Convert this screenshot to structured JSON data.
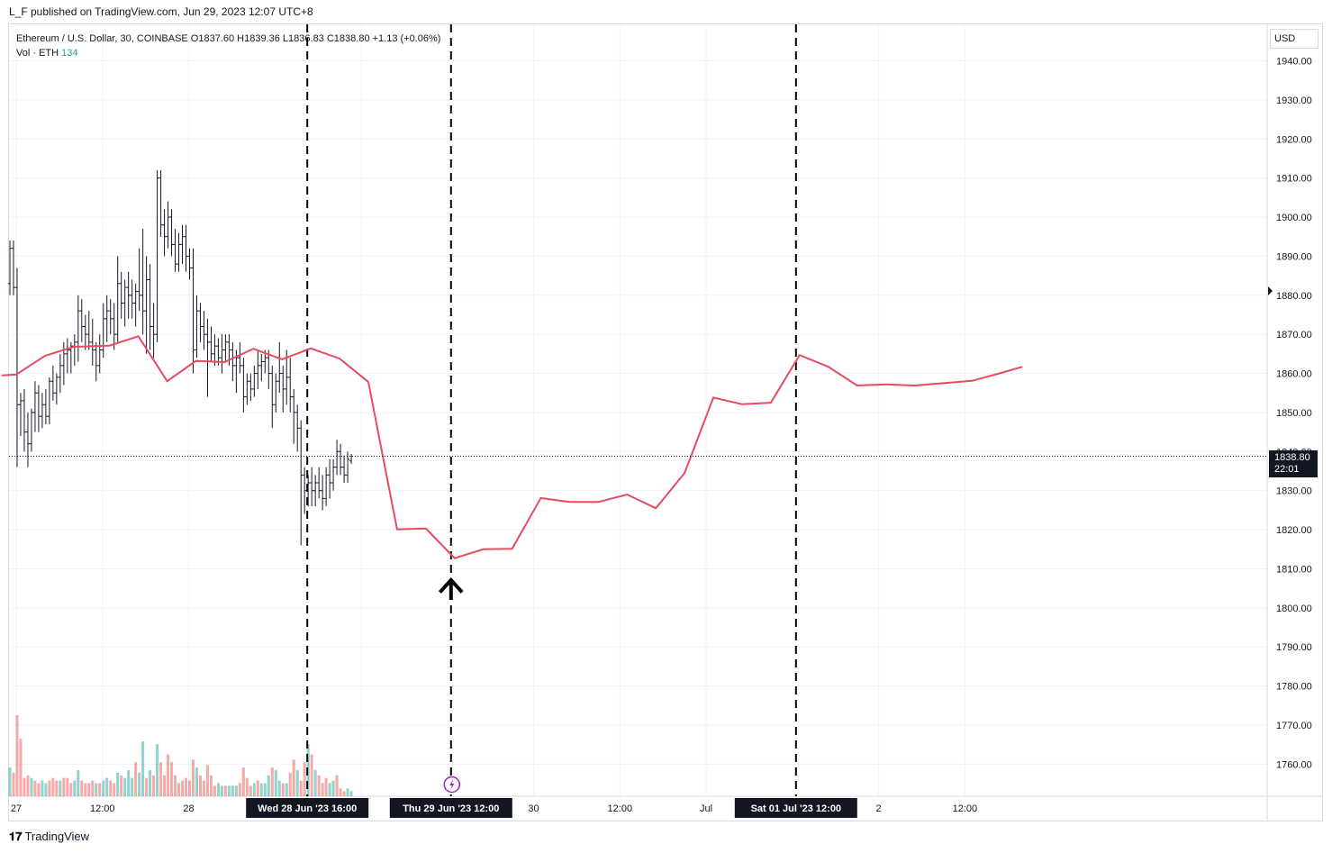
{
  "header": {
    "published": "L_F published on TradingView.com, Jun 29, 2023 12:07 UTC+8"
  },
  "legend": {
    "symbol_line": "Ethereum / U.S. Dollar, 30, COINBASE  O1837.60  H1839.36  L1836.83  C1838.80  +1.13 (+0.06%)",
    "vol_label": "Vol · ETH",
    "vol_value": "134"
  },
  "price_axis": {
    "currency": "USD",
    "last_price": "1838.80",
    "countdown": "22:01"
  },
  "footer": {
    "brand": "TradingView",
    "logo_icon": "tradingview-logo-icon"
  },
  "colors": {
    "up_candle": "#131722",
    "prediction_line": "#e84a5f",
    "volume_up": "#26a69a",
    "volume_down": "#ef5350",
    "vline": "#000000",
    "highlight_label": "#131722"
  },
  "chart_data": {
    "type": "line",
    "symbol": "ETH/USD",
    "interval": "30",
    "exchange": "COINBASE",
    "ylim": [
      1752,
      1945
    ],
    "y_ticks": [
      1760,
      1770,
      1780,
      1790,
      1800,
      1810,
      1820,
      1830,
      1840,
      1850,
      1860,
      1870,
      1880,
      1890,
      1900,
      1910,
      1920,
      1930,
      1940
    ],
    "x_ticks": [
      {
        "label": "27",
        "t": 0
      },
      {
        "label": "12:00",
        "t": 24
      },
      {
        "label": "28",
        "t": 48
      },
      {
        "label": "29",
        "t": 96
      },
      {
        "label": "30",
        "t": 144
      },
      {
        "label": "12:00",
        "t": 168
      },
      {
        "label": "Jul",
        "t": 192
      },
      {
        "label": "2",
        "t": 240
      },
      {
        "label": "12:00",
        "t": 264
      }
    ],
    "highlight_labels": [
      {
        "label": "Wed 28 Jun '23   16:00",
        "t": 81
      },
      {
        "label": "Thu 29 Jun '23   12:00",
        "t": 121
      },
      {
        "label": "Sat 01 Jul '23   12:00",
        "t": 217
      }
    ],
    "vertical_lines_t": [
      81,
      121,
      217
    ],
    "last_price": 1838.8,
    "candles": [
      [
        1883,
        1894,
        1880,
        1892
      ],
      [
        1892,
        1894,
        1880,
        1882
      ],
      [
        1882,
        1887,
        1836,
        1852
      ],
      [
        1852,
        1855,
        1844,
        1853
      ],
      [
        1853,
        1856,
        1840,
        1845
      ],
      [
        1845,
        1850,
        1836,
        1842
      ],
      [
        1842,
        1851,
        1840,
        1850
      ],
      [
        1850,
        1858,
        1845,
        1855
      ],
      [
        1855,
        1857,
        1845,
        1849
      ],
      [
        1849,
        1855,
        1846,
        1852
      ],
      [
        1852,
        1856,
        1847,
        1849
      ],
      [
        1849,
        1859,
        1847,
        1858
      ],
      [
        1858,
        1862,
        1853,
        1855
      ],
      [
        1855,
        1860,
        1852,
        1859
      ],
      [
        1859,
        1865,
        1855,
        1862
      ],
      [
        1862,
        1868,
        1857,
        1865
      ],
      [
        1865,
        1869,
        1860,
        1866
      ],
      [
        1866,
        1868,
        1860,
        1867
      ],
      [
        1867,
        1870,
        1862,
        1868
      ],
      [
        1868,
        1880,
        1863,
        1876
      ],
      [
        1876,
        1879,
        1868,
        1872
      ],
      [
        1872,
        1875,
        1866,
        1870
      ],
      [
        1870,
        1876,
        1866,
        1868
      ],
      [
        1868,
        1874,
        1862,
        1866
      ],
      [
        1866,
        1868,
        1858,
        1862
      ],
      [
        1862,
        1870,
        1860,
        1866
      ],
      [
        1866,
        1878,
        1864,
        1874
      ],
      [
        1874,
        1880,
        1868,
        1876
      ],
      [
        1876,
        1879,
        1870,
        1874
      ],
      [
        1874,
        1878,
        1866,
        1870
      ],
      [
        1870,
        1890,
        1868,
        1883
      ],
      [
        1883,
        1886,
        1874,
        1878
      ],
      [
        1878,
        1884,
        1872,
        1882
      ],
      [
        1882,
        1886,
        1874,
        1880
      ],
      [
        1880,
        1884,
        1874,
        1878
      ],
      [
        1878,
        1883,
        1872,
        1881
      ],
      [
        1881,
        1892,
        1876,
        1880
      ],
      [
        1880,
        1897,
        1870,
        1876
      ],
      [
        1876,
        1890,
        1865,
        1884
      ],
      [
        1884,
        1888,
        1866,
        1872
      ],
      [
        1872,
        1878,
        1864,
        1870
      ],
      [
        1870,
        1912,
        1868,
        1910
      ],
      [
        1910,
        1912,
        1895,
        1898
      ],
      [
        1898,
        1902,
        1890,
        1895
      ],
      [
        1895,
        1904,
        1892,
        1900
      ],
      [
        1900,
        1902,
        1890,
        1893
      ],
      [
        1893,
        1897,
        1886,
        1888
      ],
      [
        1888,
        1896,
        1886,
        1893
      ],
      [
        1893,
        1898,
        1888,
        1895
      ],
      [
        1895,
        1898,
        1886,
        1890
      ],
      [
        1890,
        1892,
        1884,
        1887
      ],
      [
        1887,
        1892,
        1860,
        1866
      ],
      [
        1866,
        1880,
        1864,
        1876
      ],
      [
        1876,
        1878,
        1868,
        1872
      ],
      [
        1872,
        1876,
        1866,
        1870
      ],
      [
        1870,
        1874,
        1854,
        1868
      ],
      [
        1868,
        1872,
        1863,
        1865
      ],
      [
        1865,
        1870,
        1862,
        1867
      ],
      [
        1867,
        1869,
        1862,
        1864
      ],
      [
        1864,
        1870,
        1860,
        1866
      ],
      [
        1866,
        1870,
        1863,
        1868
      ],
      [
        1868,
        1870,
        1862,
        1866
      ],
      [
        1866,
        1868,
        1858,
        1862
      ],
      [
        1862,
        1866,
        1855,
        1864
      ],
      [
        1864,
        1868,
        1860,
        1862
      ],
      [
        1862,
        1864,
        1850,
        1854
      ],
      [
        1854,
        1860,
        1852,
        1858
      ],
      [
        1858,
        1860,
        1853,
        1856
      ],
      [
        1856,
        1862,
        1854,
        1860
      ],
      [
        1860,
        1866,
        1856,
        1862
      ],
      [
        1862,
        1865,
        1858,
        1863
      ],
      [
        1863,
        1866,
        1860,
        1864
      ],
      [
        1864,
        1866,
        1856,
        1860
      ],
      [
        1860,
        1862,
        1846,
        1852
      ],
      [
        1852,
        1860,
        1850,
        1858
      ],
      [
        1858,
        1868,
        1855,
        1860
      ],
      [
        1860,
        1862,
        1850,
        1856
      ],
      [
        1856,
        1866,
        1852,
        1859
      ],
      [
        1859,
        1864,
        1850,
        1854
      ],
      [
        1854,
        1856,
        1842,
        1850
      ],
      [
        1850,
        1852,
        1840,
        1846
      ],
      [
        1846,
        1848,
        1816,
        1834
      ],
      [
        1834,
        1836,
        1824,
        1830
      ],
      [
        1830,
        1834,
        1826,
        1832
      ],
      [
        1832,
        1836,
        1826,
        1830
      ],
      [
        1830,
        1834,
        1826,
        1832
      ],
      [
        1832,
        1836,
        1828,
        1830
      ],
      [
        1830,
        1834,
        1825,
        1828
      ],
      [
        1828,
        1836,
        1826,
        1834
      ],
      [
        1834,
        1838,
        1828,
        1832
      ],
      [
        1832,
        1838,
        1830,
        1836
      ],
      [
        1836,
        1843,
        1834,
        1840
      ],
      [
        1840,
        1842,
        1834,
        1836
      ],
      [
        1836,
        1839,
        1832,
        1834
      ],
      [
        1834,
        1840,
        1832,
        1838
      ],
      [
        1837.6,
        1839.36,
        1836.83,
        1838.8
      ]
    ],
    "volumes": [
      [
        11,
        0
      ],
      [
        9,
        1
      ],
      [
        31,
        1
      ],
      [
        22,
        1
      ],
      [
        7,
        1
      ],
      [
        8,
        1
      ],
      [
        7,
        0
      ],
      [
        6,
        1
      ],
      [
        5,
        1
      ],
      [
        6,
        0
      ],
      [
        5,
        0
      ],
      [
        6,
        1
      ],
      [
        7,
        1
      ],
      [
        6,
        1
      ],
      [
        6,
        0
      ],
      [
        7,
        1
      ],
      [
        7,
        1
      ],
      [
        5,
        1
      ],
      [
        6,
        0
      ],
      [
        10,
        0
      ],
      [
        6,
        1
      ],
      [
        5,
        1
      ],
      [
        5,
        1
      ],
      [
        6,
        1
      ],
      [
        5,
        0
      ],
      [
        5,
        1
      ],
      [
        6,
        0
      ],
      [
        7,
        0
      ],
      [
        6,
        1
      ],
      [
        5,
        1
      ],
      [
        9,
        0
      ],
      [
        8,
        1
      ],
      [
        7,
        0
      ],
      [
        10,
        0
      ],
      [
        7,
        0
      ],
      [
        13,
        1
      ],
      [
        9,
        0
      ],
      [
        21,
        0
      ],
      [
        7,
        1
      ],
      [
        10,
        0
      ],
      [
        8,
        1
      ],
      [
        20,
        0
      ],
      [
        13,
        1
      ],
      [
        8,
        1
      ],
      [
        16,
        1
      ],
      [
        13,
        1
      ],
      [
        8,
        1
      ],
      [
        5,
        1
      ],
      [
        6,
        1
      ],
      [
        7,
        1
      ],
      [
        6,
        1
      ],
      [
        14,
        1
      ],
      [
        11,
        0
      ],
      [
        8,
        1
      ],
      [
        6,
        1
      ],
      [
        12,
        1
      ],
      [
        8,
        1
      ],
      [
        4,
        1
      ],
      [
        5,
        0
      ],
      [
        4,
        0
      ],
      [
        4,
        1
      ],
      [
        4,
        0
      ],
      [
        4,
        0
      ],
      [
        4,
        0
      ],
      [
        5,
        1
      ],
      [
        11,
        1
      ],
      [
        7,
        1
      ],
      [
        4,
        1
      ],
      [
        5,
        0
      ],
      [
        6,
        1
      ],
      [
        5,
        0
      ],
      [
        5,
        0
      ],
      [
        8,
        0
      ],
      [
        11,
        1
      ],
      [
        10,
        0
      ],
      [
        6,
        0
      ],
      [
        5,
        1
      ],
      [
        5,
        0
      ],
      [
        9,
        1
      ],
      [
        14,
        1
      ],
      [
        10,
        0
      ],
      [
        6,
        1
      ],
      [
        13,
        1
      ],
      [
        20,
        0
      ],
      [
        16,
        1
      ],
      [
        10,
        0
      ],
      [
        8,
        1
      ],
      [
        5,
        1
      ],
      [
        7,
        1
      ],
      [
        5,
        0
      ],
      [
        6,
        0
      ],
      [
        8,
        1
      ],
      [
        3,
        1
      ],
      [
        2,
        1
      ],
      [
        3,
        0
      ],
      [
        2,
        0
      ]
    ],
    "prediction_line": [
      {
        "t": -4,
        "y": 1859.5
      },
      {
        "t": 0,
        "y": 1859.7
      },
      {
        "t": 8,
        "y": 1864.5
      },
      {
        "t": 16,
        "y": 1866.8
      },
      {
        "t": 26,
        "y": 1867.1
      },
      {
        "t": 34,
        "y": 1869.5
      },
      {
        "t": 42,
        "y": 1858
      },
      {
        "t": 50,
        "y": 1863.2
      },
      {
        "t": 58,
        "y": 1862.9
      },
      {
        "t": 66,
        "y": 1866.3
      },
      {
        "t": 74,
        "y": 1863.6
      },
      {
        "t": 82,
        "y": 1866.4
      },
      {
        "t": 90,
        "y": 1863.8
      },
      {
        "t": 98,
        "y": 1857.8
      },
      {
        "t": 106,
        "y": 1820.1
      },
      {
        "t": 114,
        "y": 1820.3
      },
      {
        "t": 122,
        "y": 1812.7
      },
      {
        "t": 130,
        "y": 1815
      },
      {
        "t": 138,
        "y": 1815.1
      },
      {
        "t": 146,
        "y": 1828.1
      },
      {
        "t": 154,
        "y": 1827.1
      },
      {
        "t": 162,
        "y": 1827.1
      },
      {
        "t": 170,
        "y": 1829
      },
      {
        "t": 178,
        "y": 1825.5
      },
      {
        "t": 186,
        "y": 1834.5
      },
      {
        "t": 194,
        "y": 1853.8
      },
      {
        "t": 202,
        "y": 1852.1
      },
      {
        "t": 210,
        "y": 1852.5
      },
      {
        "t": 218,
        "y": 1864.7
      },
      {
        "t": 226,
        "y": 1861.7
      },
      {
        "t": 234,
        "y": 1856.9
      },
      {
        "t": 242,
        "y": 1857.2
      },
      {
        "t": 250,
        "y": 1856.9
      },
      {
        "t": 258,
        "y": 1857.5
      },
      {
        "t": 266,
        "y": 1858.1
      },
      {
        "t": 274,
        "y": 1860.1
      },
      {
        "t": 280,
        "y": 1861.7
      }
    ]
  }
}
